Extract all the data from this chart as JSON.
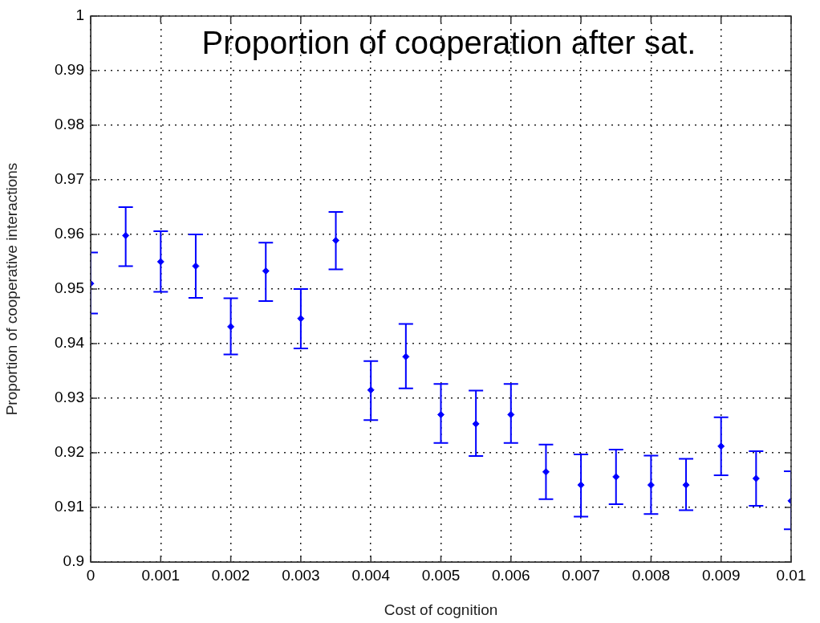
{
  "chart_data": {
    "type": "scatter",
    "title": "Proportion of cooperation after sat.",
    "xlabel": "Cost of cognition",
    "ylabel": "Proportion of cooperative interactions",
    "x": [
      0,
      0.0005,
      0.001,
      0.0015,
      0.002,
      0.0025,
      0.003,
      0.0035,
      0.004,
      0.0045,
      0.005,
      0.0055,
      0.006,
      0.0065,
      0.007,
      0.0075,
      0.008,
      0.0085,
      0.009,
      0.0095,
      0.01
    ],
    "series": [
      {
        "color": "#0000ff",
        "values": [
          0.951,
          0.9598,
          0.955,
          0.9542,
          0.9431,
          0.9533,
          0.9446,
          0.9589,
          0.9315,
          0.9376,
          0.927,
          0.9253,
          0.927,
          0.9165,
          0.9141,
          0.9156,
          0.9141,
          0.9141,
          0.9212,
          0.9153,
          0.9112
        ],
        "errors": [
          [
            0.9455,
            0.9567
          ],
          [
            0.9542,
            0.965
          ],
          [
            0.9495,
            0.9606
          ],
          [
            0.9484,
            0.96
          ],
          [
            0.938,
            0.9483
          ],
          [
            0.9478,
            0.9585
          ],
          [
            0.9391,
            0.95
          ],
          [
            0.9536,
            0.9641
          ],
          [
            0.926,
            0.9368
          ],
          [
            0.9318,
            0.9436
          ],
          [
            0.9218,
            0.9326
          ],
          [
            0.9194,
            0.9314
          ],
          [
            0.9218,
            0.9326
          ],
          [
            0.9115,
            0.9215
          ],
          [
            0.9083,
            0.9197
          ],
          [
            0.9106,
            0.9206
          ],
          [
            0.9088,
            0.9195
          ],
          [
            0.9095,
            0.9189
          ],
          [
            0.9159,
            0.9265
          ],
          [
            0.9103,
            0.9203
          ],
          [
            0.906,
            0.9166
          ]
        ]
      }
    ],
    "xlim": [
      0,
      0.01
    ],
    "xticks": [
      0,
      0.001,
      0.002,
      0.003,
      0.004,
      0.005,
      0.006,
      0.007,
      0.008,
      0.009,
      0.01
    ],
    "ylim": [
      0.9,
      1
    ],
    "yticks": [
      0.9,
      0.91,
      0.92,
      0.93,
      0.94,
      0.95,
      0.96,
      0.97,
      0.98,
      0.99,
      1
    ],
    "grid": true,
    "legend": false,
    "marker": "diamond"
  }
}
